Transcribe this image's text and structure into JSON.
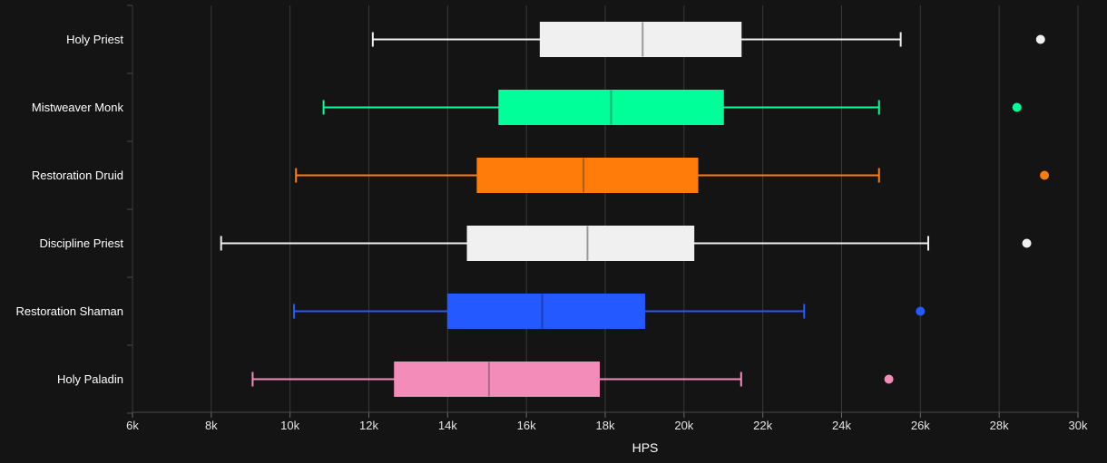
{
  "chart_data": {
    "type": "boxplot",
    "orientation": "horizontal",
    "title": "",
    "xlabel": "HPS",
    "ylabel": "",
    "xlim": [
      6000,
      30000
    ],
    "xticks": [
      6000,
      8000,
      10000,
      12000,
      14000,
      16000,
      18000,
      20000,
      22000,
      24000,
      26000,
      28000,
      30000
    ],
    "xtick_labels": [
      "6k",
      "8k",
      "10k",
      "12k",
      "14k",
      "16k",
      "18k",
      "20k",
      "22k",
      "24k",
      "26k",
      "28k",
      "30k"
    ],
    "grid": "vertical",
    "background": "#141414",
    "categories": [
      "Holy Priest",
      "Mistweaver Monk",
      "Restoration Druid",
      "Discipline Priest",
      "Restoration Shaman",
      "Holy Paladin"
    ],
    "series": [
      {
        "min": 12100,
        "q1": 16350,
        "median": 18950,
        "q3": 21450,
        "max": 25500,
        "outliers": [
          29050
        ],
        "color": "#f0f0f0",
        "median_color": "#9a9a9a"
      },
      {
        "min": 10850,
        "q1": 15300,
        "median": 18150,
        "q3": 21000,
        "max": 24950,
        "outliers": [
          28450
        ],
        "color": "#00ff98",
        "median_color": "#1fae77"
      },
      {
        "min": 10150,
        "q1": 14750,
        "median": 17450,
        "q3": 20350,
        "max": 24950,
        "outliers": [
          29150
        ],
        "color": "#ff7c0a",
        "median_color": "#b35a10"
      },
      {
        "min": 8250,
        "q1": 14500,
        "median": 17550,
        "q3": 20250,
        "max": 26200,
        "outliers": [
          28700
        ],
        "color": "#f0f0f0",
        "median_color": "#9a9a9a"
      },
      {
        "min": 10100,
        "q1": 14000,
        "median": 16400,
        "q3": 19000,
        "max": 23050,
        "outliers": [
          26000
        ],
        "color": "#2359ff",
        "median_color": "#1a3fb0"
      },
      {
        "min": 9050,
        "q1": 12650,
        "median": 15050,
        "q3": 17850,
        "max": 21450,
        "outliers": [
          25200
        ],
        "color": "#f48cba",
        "median_color": "#b06a8a"
      }
    ]
  }
}
